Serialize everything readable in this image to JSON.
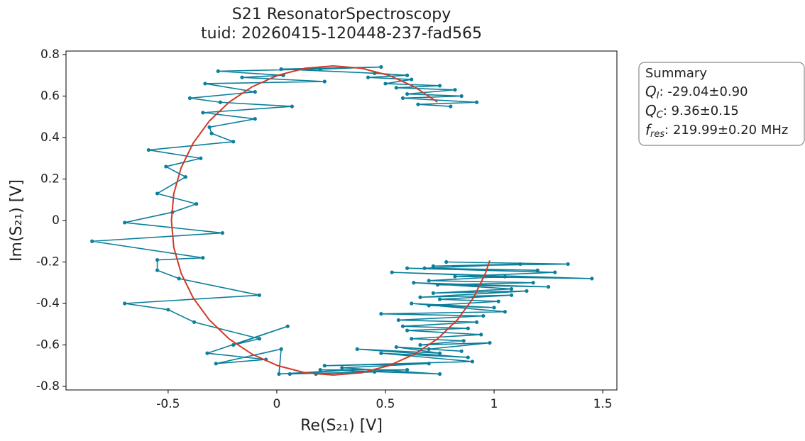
{
  "chart_data": {
    "type": "line",
    "title": "S21 ResonatorSpectroscopy",
    "subtitle": "tuid: 20260415-120448-237-fad565",
    "xlabel": "Re(S₂₁) [V]",
    "ylabel": "Im(S₂₁) [V]",
    "xlim": [
      -0.97,
      1.565
    ],
    "ylim": [
      -0.817,
      0.817
    ],
    "xticks": [
      -0.5,
      0,
      0.5,
      1,
      1.5
    ],
    "yticks": [
      0.8,
      0.6,
      0.4,
      0.2,
      0,
      -0.2,
      -0.4,
      -0.6,
      -0.8
    ],
    "grid": false,
    "series": [
      {
        "color": "#0b7f9b",
        "markers": true,
        "x": [
          0.78,
          1.34,
          0.72,
          1.12,
          0.68,
          1.2,
          0.6,
          1.28,
          0.82,
          1.45,
          0.53,
          1.05,
          0.7,
          1.18,
          0.74,
          1.25,
          0.63,
          1.08,
          0.72,
          1.15,
          0.66,
          1.08,
          0.75,
          1.02,
          0.7,
          1.0,
          0.62,
          1.05,
          0.48,
          0.95,
          0.56,
          0.92,
          0.58,
          0.88,
          0.6,
          0.94,
          0.62,
          0.86,
          0.66,
          0.98,
          0.7,
          0.85,
          0.55,
          0.75,
          0.37,
          0.88,
          0.48,
          0.9,
          0.22,
          0.7,
          0.3,
          0.75,
          0.2,
          0.6,
          0.18,
          0.45,
          0.06,
          0.35,
          0.01,
          0.02,
          -0.28,
          -0.05,
          -0.32,
          0.05,
          -0.2,
          -0.08,
          -0.38,
          -0.5,
          -0.7,
          -0.08,
          -0.45,
          -0.55,
          -0.55,
          -0.34,
          -0.85,
          -0.25,
          -0.7,
          -0.48,
          -0.37,
          -0.55,
          -0.42,
          -0.51,
          -0.35,
          -0.59,
          -0.2,
          -0.3,
          -0.31,
          -0.1,
          -0.34,
          0.07,
          -0.26,
          -0.4,
          -0.1,
          -0.33,
          0.22,
          -0.16,
          0.03,
          -0.27,
          0.2,
          0.48,
          0.02,
          0.45,
          0.6,
          0.42,
          0.62,
          0.5,
          0.75,
          0.55,
          0.82,
          0.6,
          0.85,
          0.58,
          0.92,
          0.65,
          0.8
        ],
        "values": [
          -0.2,
          -0.21,
          -0.22,
          -0.21,
          -0.23,
          -0.24,
          -0.23,
          -0.25,
          -0.27,
          -0.28,
          -0.25,
          -0.27,
          -0.29,
          -0.3,
          -0.31,
          -0.32,
          -0.3,
          -0.33,
          -0.35,
          -0.34,
          -0.37,
          -0.36,
          -0.38,
          -0.39,
          -0.41,
          -0.42,
          -0.4,
          -0.44,
          -0.45,
          -0.46,
          -0.48,
          -0.49,
          -0.51,
          -0.52,
          -0.53,
          -0.55,
          -0.57,
          -0.58,
          -0.6,
          -0.59,
          -0.62,
          -0.63,
          -0.61,
          -0.64,
          -0.62,
          -0.66,
          -0.64,
          -0.68,
          -0.7,
          -0.69,
          -0.71,
          -0.74,
          -0.72,
          -0.72,
          -0.74,
          -0.73,
          -0.74,
          -0.72,
          -0.74,
          -0.62,
          -0.69,
          -0.67,
          -0.64,
          -0.51,
          -0.6,
          -0.57,
          -0.49,
          -0.43,
          -0.4,
          -0.36,
          -0.28,
          -0.24,
          -0.19,
          -0.18,
          -0.1,
          -0.06,
          -0.01,
          0.04,
          0.08,
          0.13,
          0.21,
          0.26,
          0.3,
          0.34,
          0.38,
          0.42,
          0.45,
          0.49,
          0.52,
          0.55,
          0.57,
          0.59,
          0.62,
          0.66,
          0.67,
          0.69,
          0.7,
          0.72,
          0.73,
          0.74,
          0.73,
          0.71,
          0.7,
          0.69,
          0.68,
          0.66,
          0.65,
          0.64,
          0.63,
          0.61,
          0.6,
          0.59,
          0.57,
          0.56,
          0.55
        ]
      },
      {
        "color": "#d03a28",
        "markers": false,
        "x": [
          0.739,
          0.633,
          0.515,
          0.39,
          0.26,
          0.13,
          0.005,
          -0.113,
          -0.219,
          -0.311,
          -0.385,
          -0.44,
          -0.474,
          -0.485,
          -0.474,
          -0.44,
          -0.385,
          -0.311,
          -0.219,
          -0.113,
          0.005,
          0.13,
          0.26,
          0.39,
          0.515,
          0.633,
          0.739,
          0.831,
          0.905,
          0.96,
          0.98
        ],
        "values": [
          0.571,
          0.645,
          0.7,
          0.734,
          0.745,
          0.734,
          0.7,
          0.645,
          0.571,
          0.479,
          0.373,
          0.255,
          0.13,
          0,
          -0.13,
          -0.255,
          -0.373,
          -0.479,
          -0.571,
          -0.645,
          -0.7,
          -0.734,
          -0.745,
          -0.734,
          -0.7,
          -0.645,
          -0.571,
          -0.479,
          -0.373,
          -0.255,
          -0.193
        ]
      }
    ],
    "annotation": {
      "title": "Summary",
      "lines": [
        {
          "symbol": "Q",
          "subscript": "I",
          "text": ": -29.04±0.90"
        },
        {
          "symbol": "Q",
          "subscript": "C",
          "text": ": 9.36±0.15"
        },
        {
          "symbol": "f",
          "subscript": "res",
          "text": ": 219.99±0.20 MHz"
        }
      ]
    }
  }
}
